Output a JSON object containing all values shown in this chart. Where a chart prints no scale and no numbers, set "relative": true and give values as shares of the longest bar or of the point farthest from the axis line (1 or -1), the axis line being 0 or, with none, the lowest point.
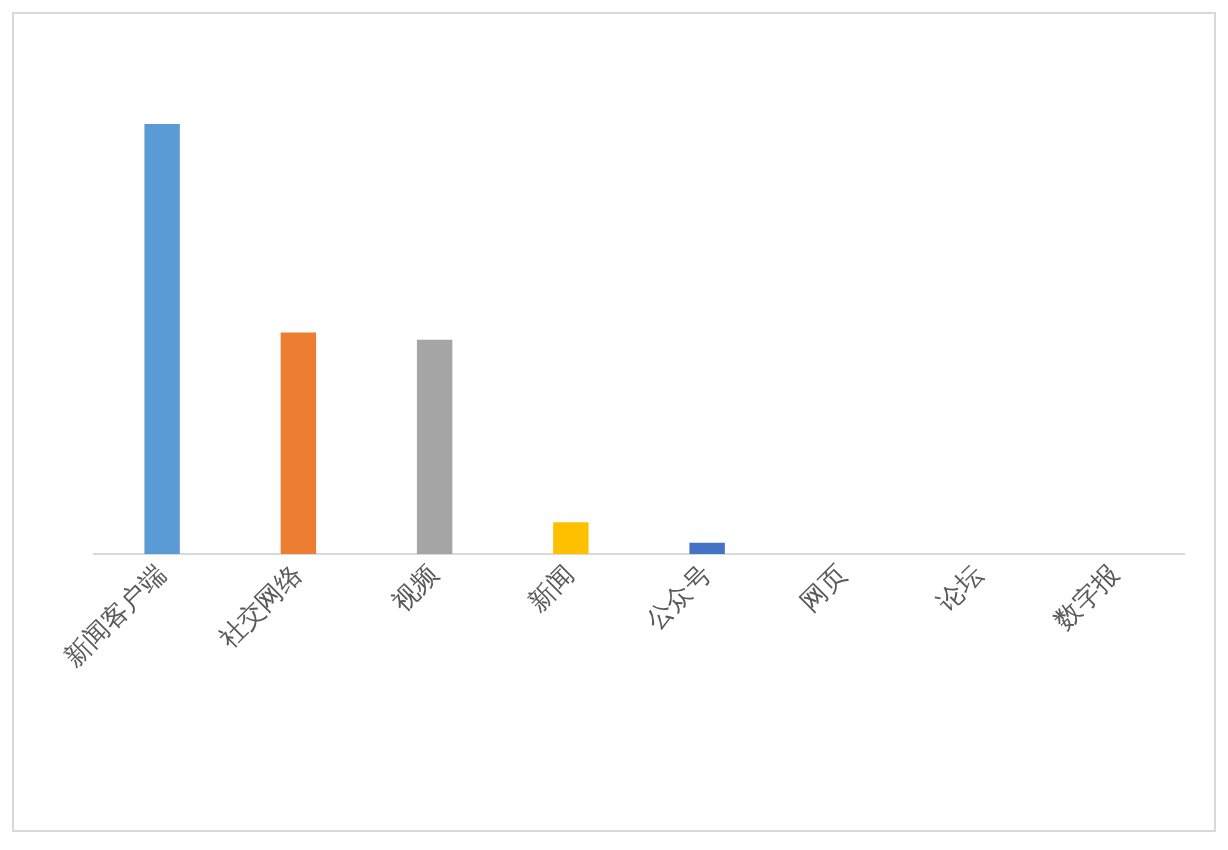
{
  "chart_data": {
    "type": "bar",
    "relative": true,
    "categories": [
      "新闻客户端",
      "社交网络",
      "视频",
      "新闻",
      "公众号",
      "网页",
      "论坛",
      "数字报"
    ],
    "values": [
      1,
      0.515,
      0.498,
      0.074,
      0.026,
      0,
      0,
      0
    ],
    "colors": [
      "#5b9bd5",
      "#ed7d31",
      "#a5a5a5",
      "#ffc000",
      "#4472c4",
      "#70ad47",
      "#255e91",
      "#9e480e"
    ],
    "grid": false,
    "legend": false
  }
}
